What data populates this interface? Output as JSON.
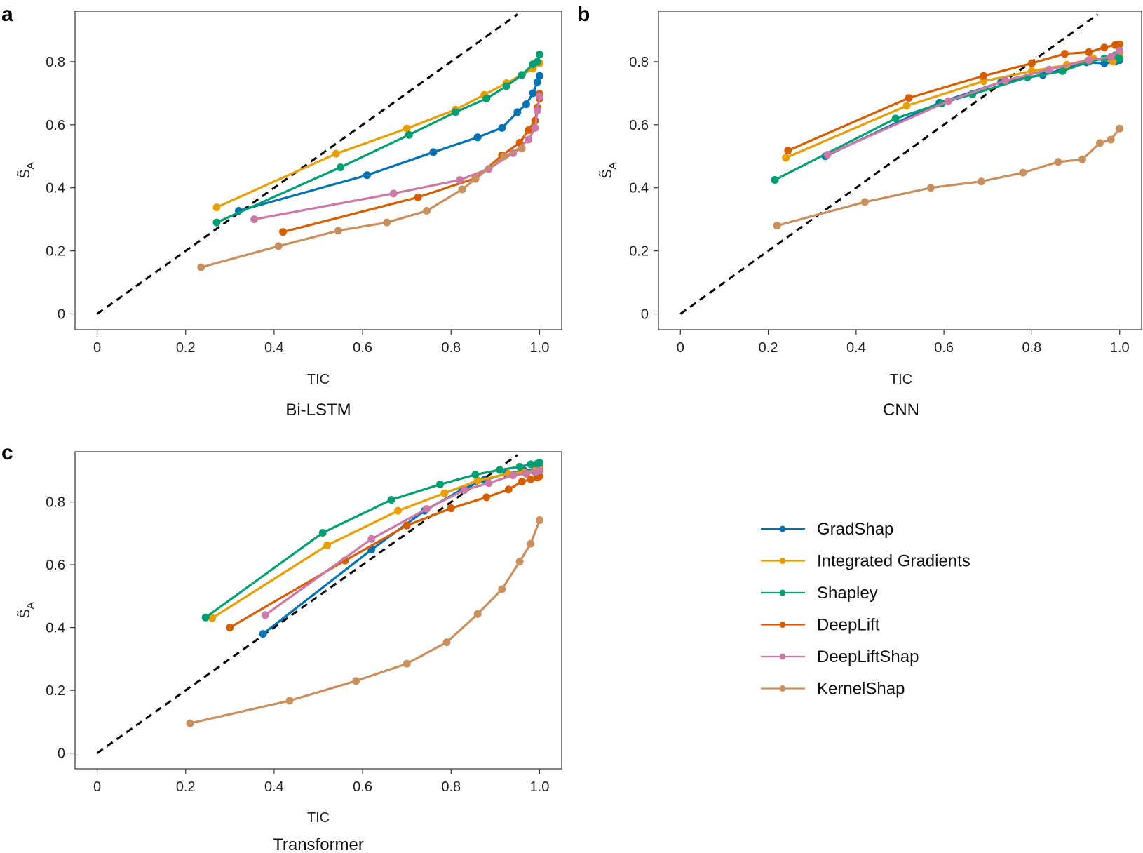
{
  "legend": [
    {
      "name": "GradShap",
      "color": "#0072B2"
    },
    {
      "name": "Integrated Gradients",
      "color": "#E69F00"
    },
    {
      "name": "Shapley",
      "color": "#009E73"
    },
    {
      "name": "DeepLift",
      "color": "#D55E00"
    },
    {
      "name": "DeepLiftShap",
      "color": "#CC79A7"
    },
    {
      "name": "KernelShap",
      "color": "#C8905E"
    }
  ],
  "chart_data": [
    {
      "panel": "a",
      "type": "line",
      "title": "Bi-LSTM",
      "xlabel": "TIC",
      "ylabel": "S̃",
      "ylabel_sub": "A",
      "xlim": [
        -0.05,
        1.05
      ],
      "ylim": [
        -0.05,
        0.96
      ],
      "xticks": [
        0,
        0.2,
        0.4,
        0.6,
        0.8,
        1.0
      ],
      "xtick_labels": [
        "0",
        "0.2",
        "0.4",
        "0.6",
        "0.8",
        "1.0"
      ],
      "yticks": [
        0,
        0.2,
        0.4,
        0.6,
        0.8
      ],
      "ytick_labels": [
        "0",
        "0.2",
        "0.4",
        "0.6",
        "0.8"
      ],
      "reference_line": [
        [
          0,
          0
        ],
        [
          0.95,
          0.95
        ]
      ],
      "series": [
        {
          "name": "GradShap",
          "x": [
            0.32,
            0.61,
            0.76,
            0.86,
            0.915,
            0.95,
            0.97,
            0.985,
            0.995,
            1.0
          ],
          "y": [
            0.327,
            0.44,
            0.513,
            0.56,
            0.59,
            0.64,
            0.665,
            0.7,
            0.735,
            0.755
          ]
        },
        {
          "name": "Integrated Gradients",
          "x": [
            0.27,
            0.54,
            0.7,
            0.81,
            0.875,
            0.925,
            0.96,
            0.985,
            1.0
          ],
          "y": [
            0.338,
            0.508,
            0.588,
            0.648,
            0.695,
            0.732,
            0.758,
            0.778,
            0.795
          ]
        },
        {
          "name": "Shapley",
          "x": [
            0.27,
            0.55,
            0.705,
            0.81,
            0.88,
            0.925,
            0.96,
            0.985,
            0.995,
            1.0
          ],
          "y": [
            0.29,
            0.465,
            0.568,
            0.64,
            0.683,
            0.722,
            0.758,
            0.792,
            0.8,
            0.823
          ]
        },
        {
          "name": "DeepLift",
          "x": [
            0.42,
            0.725,
            0.855,
            0.915,
            0.955,
            0.975,
            0.99,
            0.995,
            1.0,
            1.0
          ],
          "y": [
            0.26,
            0.37,
            0.43,
            0.503,
            0.543,
            0.583,
            0.613,
            0.655,
            0.683,
            0.698
          ]
        },
        {
          "name": "DeepLiftShap",
          "x": [
            0.355,
            0.67,
            0.82,
            0.885,
            0.94,
            0.975,
            0.99,
            0.995,
            1.0
          ],
          "y": [
            0.3,
            0.382,
            0.425,
            0.46,
            0.51,
            0.553,
            0.59,
            0.645,
            0.69
          ]
        },
        {
          "name": "KernelShap",
          "x": [
            0.235,
            0.41,
            0.545,
            0.655,
            0.745,
            0.825,
            0.855,
            0.92,
            0.96
          ],
          "y": [
            0.148,
            0.215,
            0.264,
            0.29,
            0.327,
            0.395,
            0.428,
            0.5,
            0.525
          ]
        }
      ]
    },
    {
      "panel": "b",
      "type": "line",
      "title": "CNN",
      "xlabel": "TIC",
      "ylabel": "S̃",
      "ylabel_sub": "A",
      "xlim": [
        -0.05,
        1.05
      ],
      "ylim": [
        -0.05,
        0.96
      ],
      "xticks": [
        0,
        0.2,
        0.4,
        0.6,
        0.8,
        1.0
      ],
      "xtick_labels": [
        "0",
        "0.2",
        "0.4",
        "0.6",
        "0.8",
        "1.0"
      ],
      "yticks": [
        0,
        0.2,
        0.4,
        0.6,
        0.8
      ],
      "ytick_labels": [
        "0",
        "0.2",
        "0.4",
        "0.6",
        "0.8"
      ],
      "reference_line": [
        [
          0,
          0
        ],
        [
          0.95,
          0.95
        ]
      ],
      "series": [
        {
          "name": "GradShap",
          "x": [
            0.33,
            0.59,
            0.73,
            0.825,
            0.925,
            0.965,
            0.99,
            1.0
          ],
          "y": [
            0.5,
            0.67,
            0.735,
            0.758,
            0.798,
            0.795,
            0.8,
            0.805
          ]
        },
        {
          "name": "Integrated Gradients",
          "x": [
            0.24,
            0.515,
            0.69,
            0.8,
            0.88,
            0.94,
            0.985,
            1.0
          ],
          "y": [
            0.495,
            0.66,
            0.738,
            0.77,
            0.79,
            0.81,
            0.8,
            0.825
          ]
        },
        {
          "name": "Shapley",
          "x": [
            0.215,
            0.49,
            0.595,
            0.665,
            0.79,
            0.87,
            0.93,
            0.965,
            0.99,
            1.0
          ],
          "y": [
            0.425,
            0.62,
            0.668,
            0.697,
            0.75,
            0.77,
            0.8,
            0.81,
            0.82,
            0.81
          ]
        },
        {
          "name": "DeepLift",
          "x": [
            0.245,
            0.52,
            0.69,
            0.8,
            0.875,
            0.93,
            0.965,
            0.99,
            1.0
          ],
          "y": [
            0.518,
            0.685,
            0.755,
            0.795,
            0.825,
            0.83,
            0.845,
            0.853,
            0.855
          ]
        },
        {
          "name": "DeepLiftShap",
          "x": [
            0.335,
            0.61,
            0.74,
            0.84,
            0.93,
            0.98,
            1.0
          ],
          "y": [
            0.505,
            0.675,
            0.74,
            0.775,
            0.805,
            0.815,
            0.835
          ]
        },
        {
          "name": "KernelShap",
          "x": [
            0.22,
            0.42,
            0.57,
            0.685,
            0.78,
            0.86,
            0.915,
            0.955,
            0.98,
            1.0
          ],
          "y": [
            0.28,
            0.355,
            0.4,
            0.42,
            0.448,
            0.482,
            0.49,
            0.542,
            0.553,
            0.588
          ]
        }
      ]
    },
    {
      "panel": "c",
      "type": "line",
      "title": "Transformer",
      "xlabel": "TIC",
      "ylabel": "S̃",
      "ylabel_sub": "A",
      "xlim": [
        -0.05,
        1.05
      ],
      "ylim": [
        -0.05,
        0.96
      ],
      "xticks": [
        0,
        0.2,
        0.4,
        0.6,
        0.8,
        1.0
      ],
      "xtick_labels": [
        "0",
        "0.2",
        "0.4",
        "0.6",
        "0.8",
        "1.0"
      ],
      "yticks": [
        0,
        0.2,
        0.4,
        0.6,
        0.8
      ],
      "ytick_labels": [
        "0",
        "0.2",
        "0.4",
        "0.6",
        "0.8"
      ],
      "reference_line": [
        [
          0,
          0
        ],
        [
          0.95,
          0.95
        ]
      ],
      "series": [
        {
          "name": "GradShap",
          "x": [
            0.375,
            0.62,
            0.74,
            0.825,
            0.875,
            0.925,
            0.965,
            0.99,
            1.0
          ],
          "y": [
            0.38,
            0.648,
            0.772,
            0.84,
            0.87,
            0.89,
            0.9,
            0.905,
            0.91
          ]
        },
        {
          "name": "Integrated Gradients",
          "x": [
            0.26,
            0.52,
            0.68,
            0.785,
            0.86,
            0.93,
            0.965,
            0.99,
            1.0
          ],
          "y": [
            0.43,
            0.662,
            0.772,
            0.828,
            0.868,
            0.89,
            0.895,
            0.9,
            0.905
          ]
        },
        {
          "name": "Shapley",
          "x": [
            0.245,
            0.51,
            0.665,
            0.775,
            0.855,
            0.91,
            0.955,
            0.98,
            0.995,
            1.0
          ],
          "y": [
            0.432,
            0.702,
            0.807,
            0.856,
            0.887,
            0.902,
            0.912,
            0.92,
            0.922,
            0.925
          ]
        },
        {
          "name": "DeepLift",
          "x": [
            0.3,
            0.56,
            0.7,
            0.8,
            0.88,
            0.93,
            0.96,
            0.98,
            0.995,
            1.0
          ],
          "y": [
            0.4,
            0.613,
            0.725,
            0.78,
            0.815,
            0.84,
            0.865,
            0.872,
            0.878,
            0.882
          ]
        },
        {
          "name": "DeepLiftShap",
          "x": [
            0.38,
            0.62,
            0.745,
            0.83,
            0.885,
            0.94,
            0.97,
            0.99,
            1.0
          ],
          "y": [
            0.44,
            0.682,
            0.778,
            0.838,
            0.86,
            0.885,
            0.89,
            0.895,
            0.9
          ]
        },
        {
          "name": "KernelShap",
          "x": [
            0.21,
            0.435,
            0.585,
            0.7,
            0.79,
            0.86,
            0.915,
            0.955,
            0.98,
            1.0
          ],
          "y": [
            0.095,
            0.167,
            0.23,
            0.285,
            0.353,
            0.443,
            0.522,
            0.61,
            0.667,
            0.742
          ]
        }
      ]
    }
  ]
}
